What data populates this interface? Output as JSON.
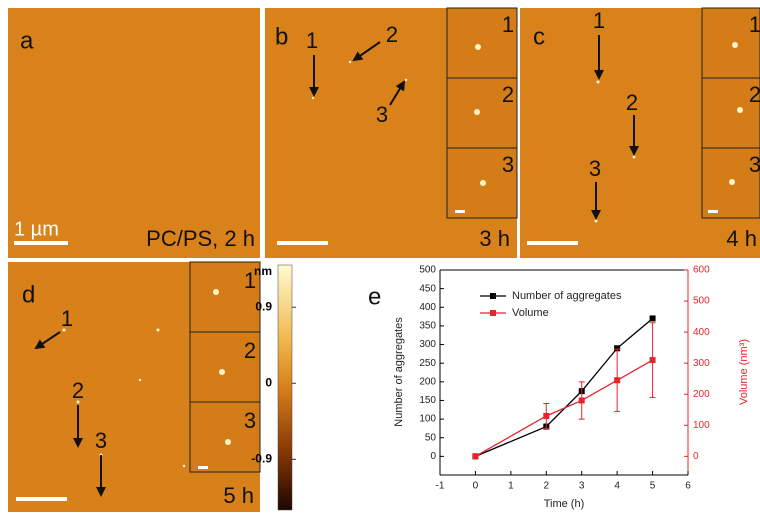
{
  "panels": {
    "a": {
      "label": "a",
      "scale": "1 µm",
      "caption": "PC/PS, 2 h"
    },
    "b": {
      "label": "b",
      "arrows": [
        "1",
        "2",
        "3"
      ],
      "insets": [
        "1",
        "2",
        "3"
      ],
      "caption": "3 h"
    },
    "c": {
      "label": "c",
      "arrows": [
        "1",
        "2",
        "3"
      ],
      "insets": [
        "1",
        "2",
        "3"
      ],
      "caption": "4 h"
    },
    "d": {
      "label": "d",
      "arrows": [
        "1",
        "2",
        "3"
      ],
      "insets": [
        "1",
        "2",
        "3"
      ],
      "caption": "5 h"
    }
  },
  "colorbar": {
    "unit": "nm",
    "lim": [
      -1.5,
      1.4
    ],
    "ticks": [
      0.9,
      0,
      -0.9
    ]
  },
  "chart_data": {
    "type": "line",
    "label": "e",
    "xlabel": "Time (h)",
    "ylabel": "Number of aggregates",
    "y2label": "Volume (nm³)",
    "x": [
      0,
      2,
      3,
      4,
      5
    ],
    "xlim": [
      -1,
      6
    ],
    "xticks": [
      -1,
      0,
      1,
      2,
      3,
      4,
      5,
      6
    ],
    "ylim": [
      -50,
      500
    ],
    "yticks": [
      0,
      50,
      100,
      150,
      200,
      250,
      300,
      350,
      400,
      450,
      500
    ],
    "y2lim": [
      -60,
      600
    ],
    "y2ticks": [
      0,
      100,
      200,
      300,
      400,
      500,
      600
    ],
    "legend": "upper-left",
    "series": [
      {
        "name": "Number of aggregates",
        "color": "#000000",
        "values": [
          0,
          80,
          175,
          290,
          370
        ]
      },
      {
        "name": "Volume",
        "color": "#e8242c",
        "axis": "y2",
        "values": [
          0,
          130,
          180,
          245,
          310
        ],
        "errors": [
          0,
          40,
          60,
          100,
          120
        ]
      }
    ]
  }
}
